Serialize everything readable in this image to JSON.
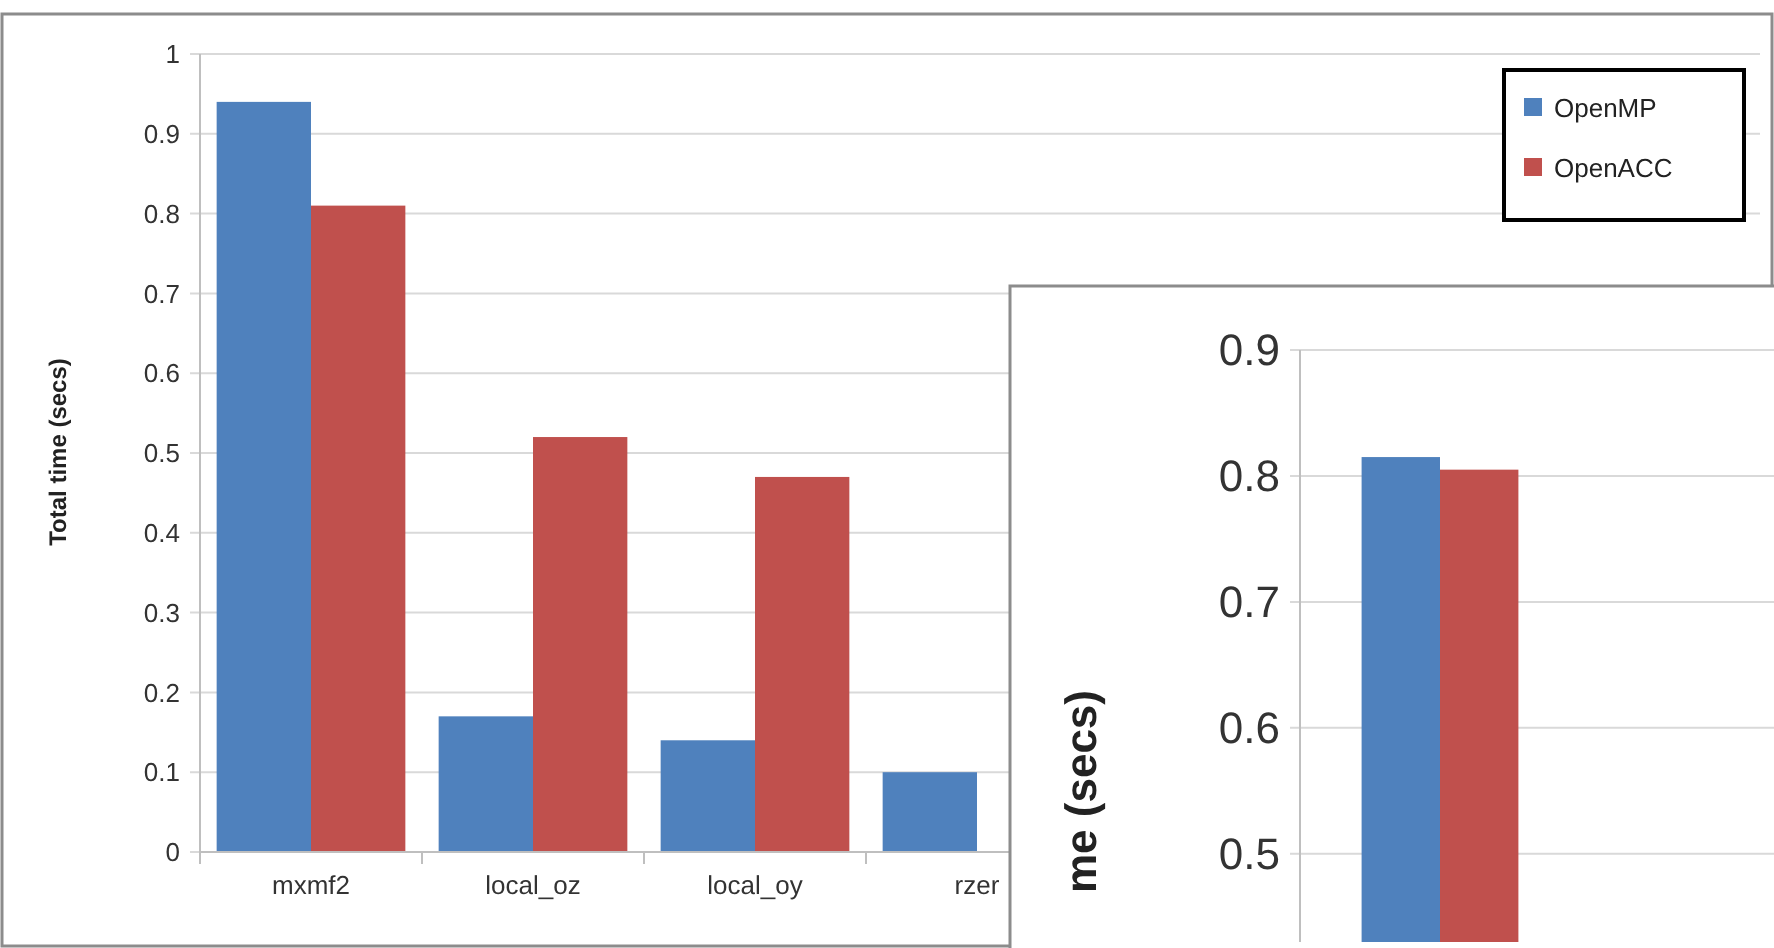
{
  "chart_data": [
    {
      "type": "bar",
      "ylabel": "Total time (secs)",
      "categories": [
        "mxmf2",
        "local_oz",
        "local_oy",
        "rzer"
      ],
      "series": [
        {
          "name": "OpenMP",
          "color": "#4f81bd",
          "values": [
            0.94,
            0.17,
            0.14,
            0.1
          ]
        },
        {
          "name": "OpenACC",
          "color": "#c0504d",
          "values": [
            0.81,
            0.52,
            0.47,
            null
          ]
        }
      ],
      "ylim": [
        0,
        1
      ],
      "yticks": [
        0,
        0.1,
        0.2,
        0.3,
        0.4,
        0.5,
        0.6,
        0.7,
        0.8,
        0.9,
        1
      ],
      "grid": "y",
      "legend": "top right"
    },
    {
      "type": "bar",
      "ylabel": "me (secs)",
      "categories": [
        null
      ],
      "series": [
        {
          "color": "#4f81bd",
          "values": [
            0.815
          ]
        },
        {
          "color": "#c0504d",
          "values": [
            0.805
          ]
        }
      ],
      "ylim": [
        0.43,
        0.9
      ],
      "yticks": [
        0.5,
        0.6,
        0.7,
        0.8,
        0.9
      ],
      "grid": "y",
      "tick_labels": "y"
    }
  ]
}
